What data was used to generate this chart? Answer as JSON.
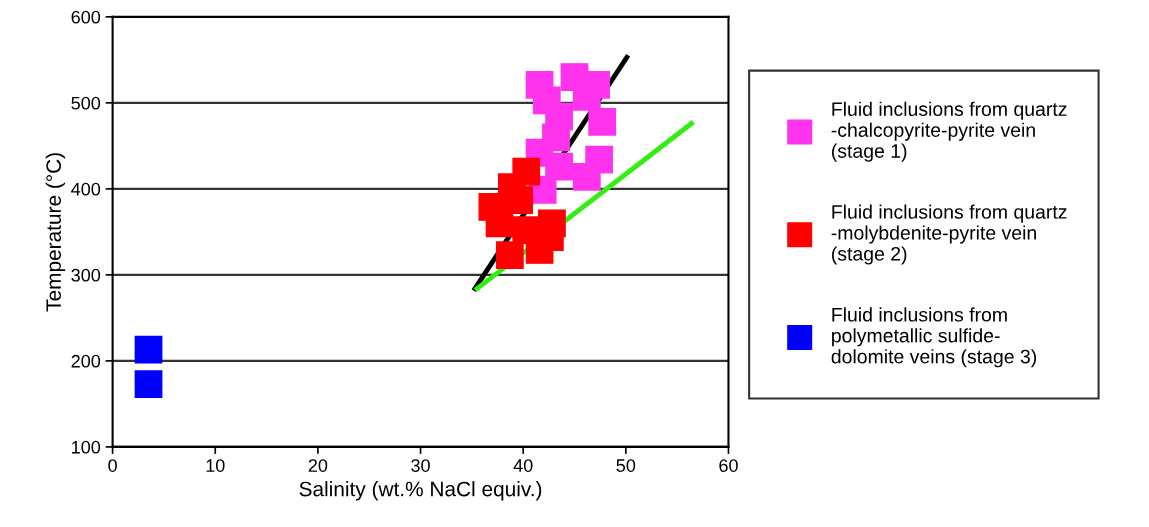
{
  "chart_data": {
    "type": "scatter",
    "xlabel": "Salinity (wt.% NaCl equiv.)",
    "ylabel": "Temperature (°C)",
    "xlim": [
      0,
      60
    ],
    "xticks": [
      0,
      10,
      20,
      30,
      40,
      50,
      60
    ],
    "ylim": [
      100,
      600
    ],
    "yticks": [
      100,
      200,
      300,
      400,
      500,
      600
    ],
    "grid": "y",
    "legend": "right",
    "marker": "square",
    "series": [
      {
        "name": "Fluid inclusions from quartz\n-chalcopyrite-pyrite vein\n(stage 1)",
        "color": "#ff33ee",
        "x": [
          41.6,
          45.0,
          47.1,
          42.3,
          46.2,
          43.5,
          47.7,
          43.2,
          41.6,
          47.4,
          43.5,
          46.2,
          41.9
        ],
        "values": [
          521,
          530,
          521,
          503,
          507,
          484,
          478,
          460,
          442,
          434,
          426,
          414,
          399
        ]
      },
      {
        "name": "Fluid inclusions from quartz\n-molybdenite-pyrite vein\n(stage 2)",
        "color": "#ff0000",
        "x": [
          40.3,
          38.9,
          37.0,
          39.6,
          42.8,
          37.7,
          40.3,
          41.6,
          38.7,
          42.6
        ],
        "values": [
          420,
          402,
          379,
          387,
          360,
          360,
          352,
          329,
          323,
          344
        ]
      },
      {
        "name": "Fluid inclusions from\npolymetallic sulfide-\ndolomite veins (stage 3)",
        "color": "#0000ff",
        "x": [
          3.5,
          3.5
        ],
        "values": [
          213,
          173
        ]
      },
      {
        "type": "line",
        "color": "#000000",
        "marker": "none",
        "x": [
          35.3,
          50.1
        ],
        "values": [
          284,
          553
        ]
      },
      {
        "type": "line",
        "color": "#33ee11",
        "marker": "none",
        "x": [
          35.5,
          56.4
        ],
        "values": [
          284,
          476
        ]
      }
    ]
  }
}
